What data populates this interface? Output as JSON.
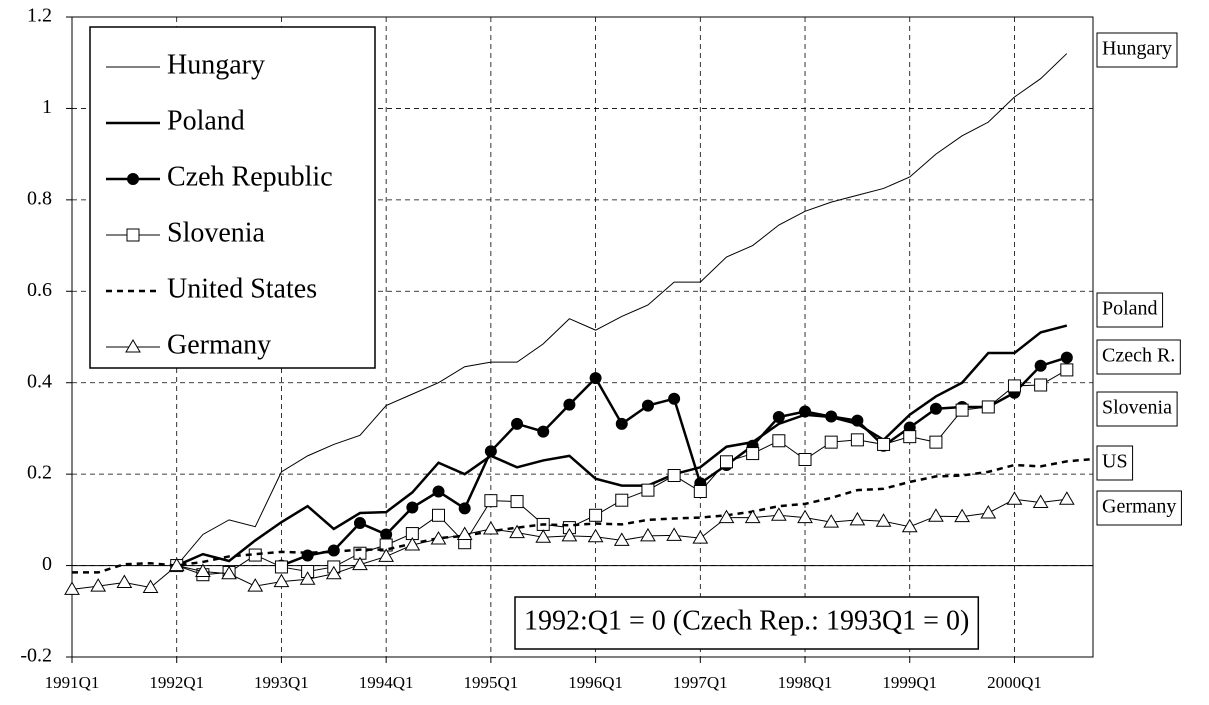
{
  "chart_data": {
    "type": "line",
    "categories": [
      "1991Q1",
      null,
      null,
      null,
      "1992Q1",
      null,
      null,
      null,
      "1993Q1",
      null,
      null,
      null,
      "1994Q1",
      null,
      null,
      null,
      "1995Q1",
      null,
      null,
      null,
      "1996Q1",
      null,
      null,
      null,
      "1997Q1",
      null,
      null,
      null,
      "1998Q1",
      null,
      null,
      null,
      "1999Q1",
      null,
      null,
      null,
      "2000Q1",
      null,
      null,
      null
    ],
    "series": [
      {
        "name": "Hungary",
        "color": "#000000",
        "line_width": 1,
        "dash": "none",
        "marker": "none",
        "values": [
          null,
          null,
          null,
          null,
          0,
          0.068,
          0.1,
          0.085,
          0.205,
          0.24,
          0.265,
          0.285,
          0.35,
          0.375,
          0.4,
          0.435,
          0.445,
          0.445,
          0.485,
          0.54,
          0.515,
          0.545,
          0.57,
          0.62,
          0.62,
          0.675,
          0.7,
          0.745,
          0.775,
          0.795,
          0.81,
          0.825,
          0.85,
          0.9,
          0.94,
          0.97,
          1.025,
          1.065,
          1.12,
          null
        ]
      },
      {
        "name": "Poland",
        "color": "#000000",
        "line_width": 2.5,
        "dash": "none",
        "marker": "none",
        "values": [
          null,
          null,
          null,
          null,
          0,
          0.025,
          0.01,
          0.055,
          0.095,
          0.13,
          0.08,
          0.115,
          0.117,
          0.16,
          0.225,
          0.2,
          0.24,
          0.215,
          0.23,
          0.24,
          0.19,
          0.175,
          0.175,
          0.2,
          0.215,
          0.26,
          0.27,
          0.31,
          0.33,
          0.325,
          0.31,
          0.275,
          0.33,
          0.37,
          0.4,
          0.465,
          0.465,
          0.51,
          0.525,
          null
        ]
      },
      {
        "name": "Czeh Republic",
        "color": "#000000",
        "line_width": 2.5,
        "dash": "none",
        "marker": "circle",
        "values": [
          null,
          null,
          null,
          null,
          null,
          null,
          null,
          null,
          0,
          0.022,
          0.033,
          0.093,
          0.068,
          0.127,
          0.162,
          0.125,
          0.25,
          0.31,
          0.293,
          0.352,
          0.41,
          0.31,
          0.35,
          0.365,
          0.18,
          0.22,
          0.262,
          0.325,
          0.337,
          0.326,
          0.317,
          0.262,
          0.302,
          0.343,
          0.347,
          0.347,
          0.378,
          0.437,
          0.455,
          null
        ]
      },
      {
        "name": "Slovenia",
        "color": "#000000",
        "line_width": 1,
        "dash": "none",
        "marker": "square",
        "values": [
          null,
          null,
          null,
          null,
          0,
          -0.02,
          -0.015,
          0.023,
          -0.003,
          -0.013,
          -0.003,
          0.027,
          0.045,
          0.07,
          0.11,
          0.05,
          0.142,
          0.14,
          0.09,
          0.083,
          0.11,
          0.143,
          0.165,
          0.197,
          0.162,
          0.227,
          0.245,
          0.273,
          0.232,
          0.27,
          0.275,
          0.265,
          0.282,
          0.27,
          0.34,
          0.347,
          0.393,
          0.395,
          0.428,
          null
        ]
      },
      {
        "name": "United States",
        "color": "#000000",
        "line_width": 2.5,
        "dash": "6 5",
        "marker": "none",
        "values": [
          -0.015,
          -0.015,
          0.003,
          0.005,
          0,
          0.008,
          0.02,
          0.025,
          0.03,
          0.028,
          0.03,
          0.035,
          0.035,
          0.048,
          0.06,
          0.065,
          0.075,
          0.083,
          0.09,
          0.088,
          0.092,
          0.09,
          0.1,
          0.103,
          0.105,
          0.11,
          0.118,
          0.13,
          0.135,
          0.148,
          0.165,
          0.168,
          0.183,
          0.195,
          0.197,
          0.205,
          0.22,
          0.217,
          0.228,
          0.233
        ]
      },
      {
        "name": "Germany",
        "color": "#000000",
        "line_width": 1,
        "dash": "none",
        "marker": "triangle",
        "values": [
          -0.052,
          -0.045,
          -0.037,
          -0.048,
          0,
          -0.013,
          -0.018,
          -0.045,
          -0.035,
          -0.03,
          -0.018,
          0.002,
          0.02,
          0.045,
          0.058,
          0.068,
          0.08,
          0.072,
          0.062,
          0.065,
          0.063,
          0.055,
          0.065,
          0.066,
          0.06,
          0.105,
          0.105,
          0.11,
          0.105,
          0.095,
          0.1,
          0.097,
          0.085,
          0.108,
          0.107,
          0.115,
          0.145,
          0.138,
          0.145,
          null
        ]
      }
    ],
    "ylim": [
      -0.2,
      1.2
    ],
    "yticks": [
      -0.2,
      0,
      0.2,
      0.4,
      0.6,
      0.8,
      1,
      1.2
    ],
    "grid": true,
    "legend": "upper left",
    "end_labels": [
      "Hungary",
      "Poland",
      "Czech R.",
      "Slovenia",
      "US",
      "Germany"
    ],
    "annotation": "1992:Q1 = 0 (Czech Rep.: 1993Q1 = 0)"
  }
}
